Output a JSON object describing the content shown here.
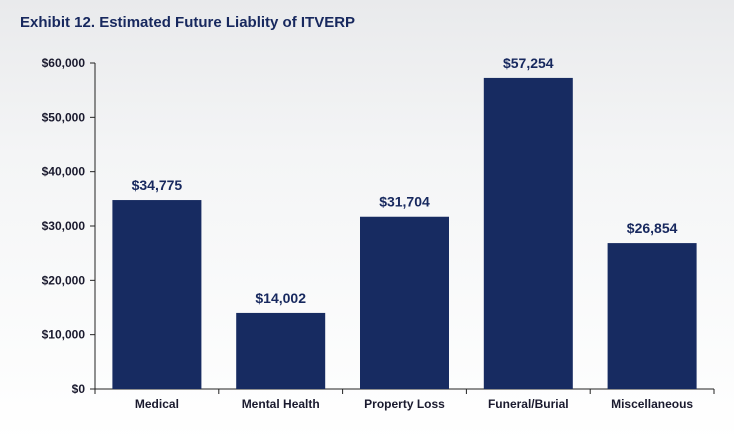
{
  "chart_data": {
    "type": "bar",
    "title": "Exhibit 12. Estimated Future Liablity of ITVERP",
    "xlabel": "",
    "ylabel": "",
    "ylim": [
      0,
      60000
    ],
    "yticks": [
      0,
      10000,
      20000,
      30000,
      40000,
      50000,
      60000
    ],
    "ytick_labels": [
      "$0",
      "$10,000",
      "$20,000",
      "$30,000",
      "$40,000",
      "$50,000",
      "$60,000"
    ],
    "categories": [
      "Medical",
      "Mental Health",
      "Property Loss",
      "Funeral/Burial",
      "Miscellaneous"
    ],
    "values": [
      34775,
      14002,
      31704,
      57254,
      26854
    ],
    "data_labels": [
      "$34,775",
      "$14,002",
      "$31,704",
      "$57,254",
      "$26,854"
    ],
    "grid": false,
    "colors": {
      "bar": "#172b61",
      "title": "#17285e"
    }
  }
}
